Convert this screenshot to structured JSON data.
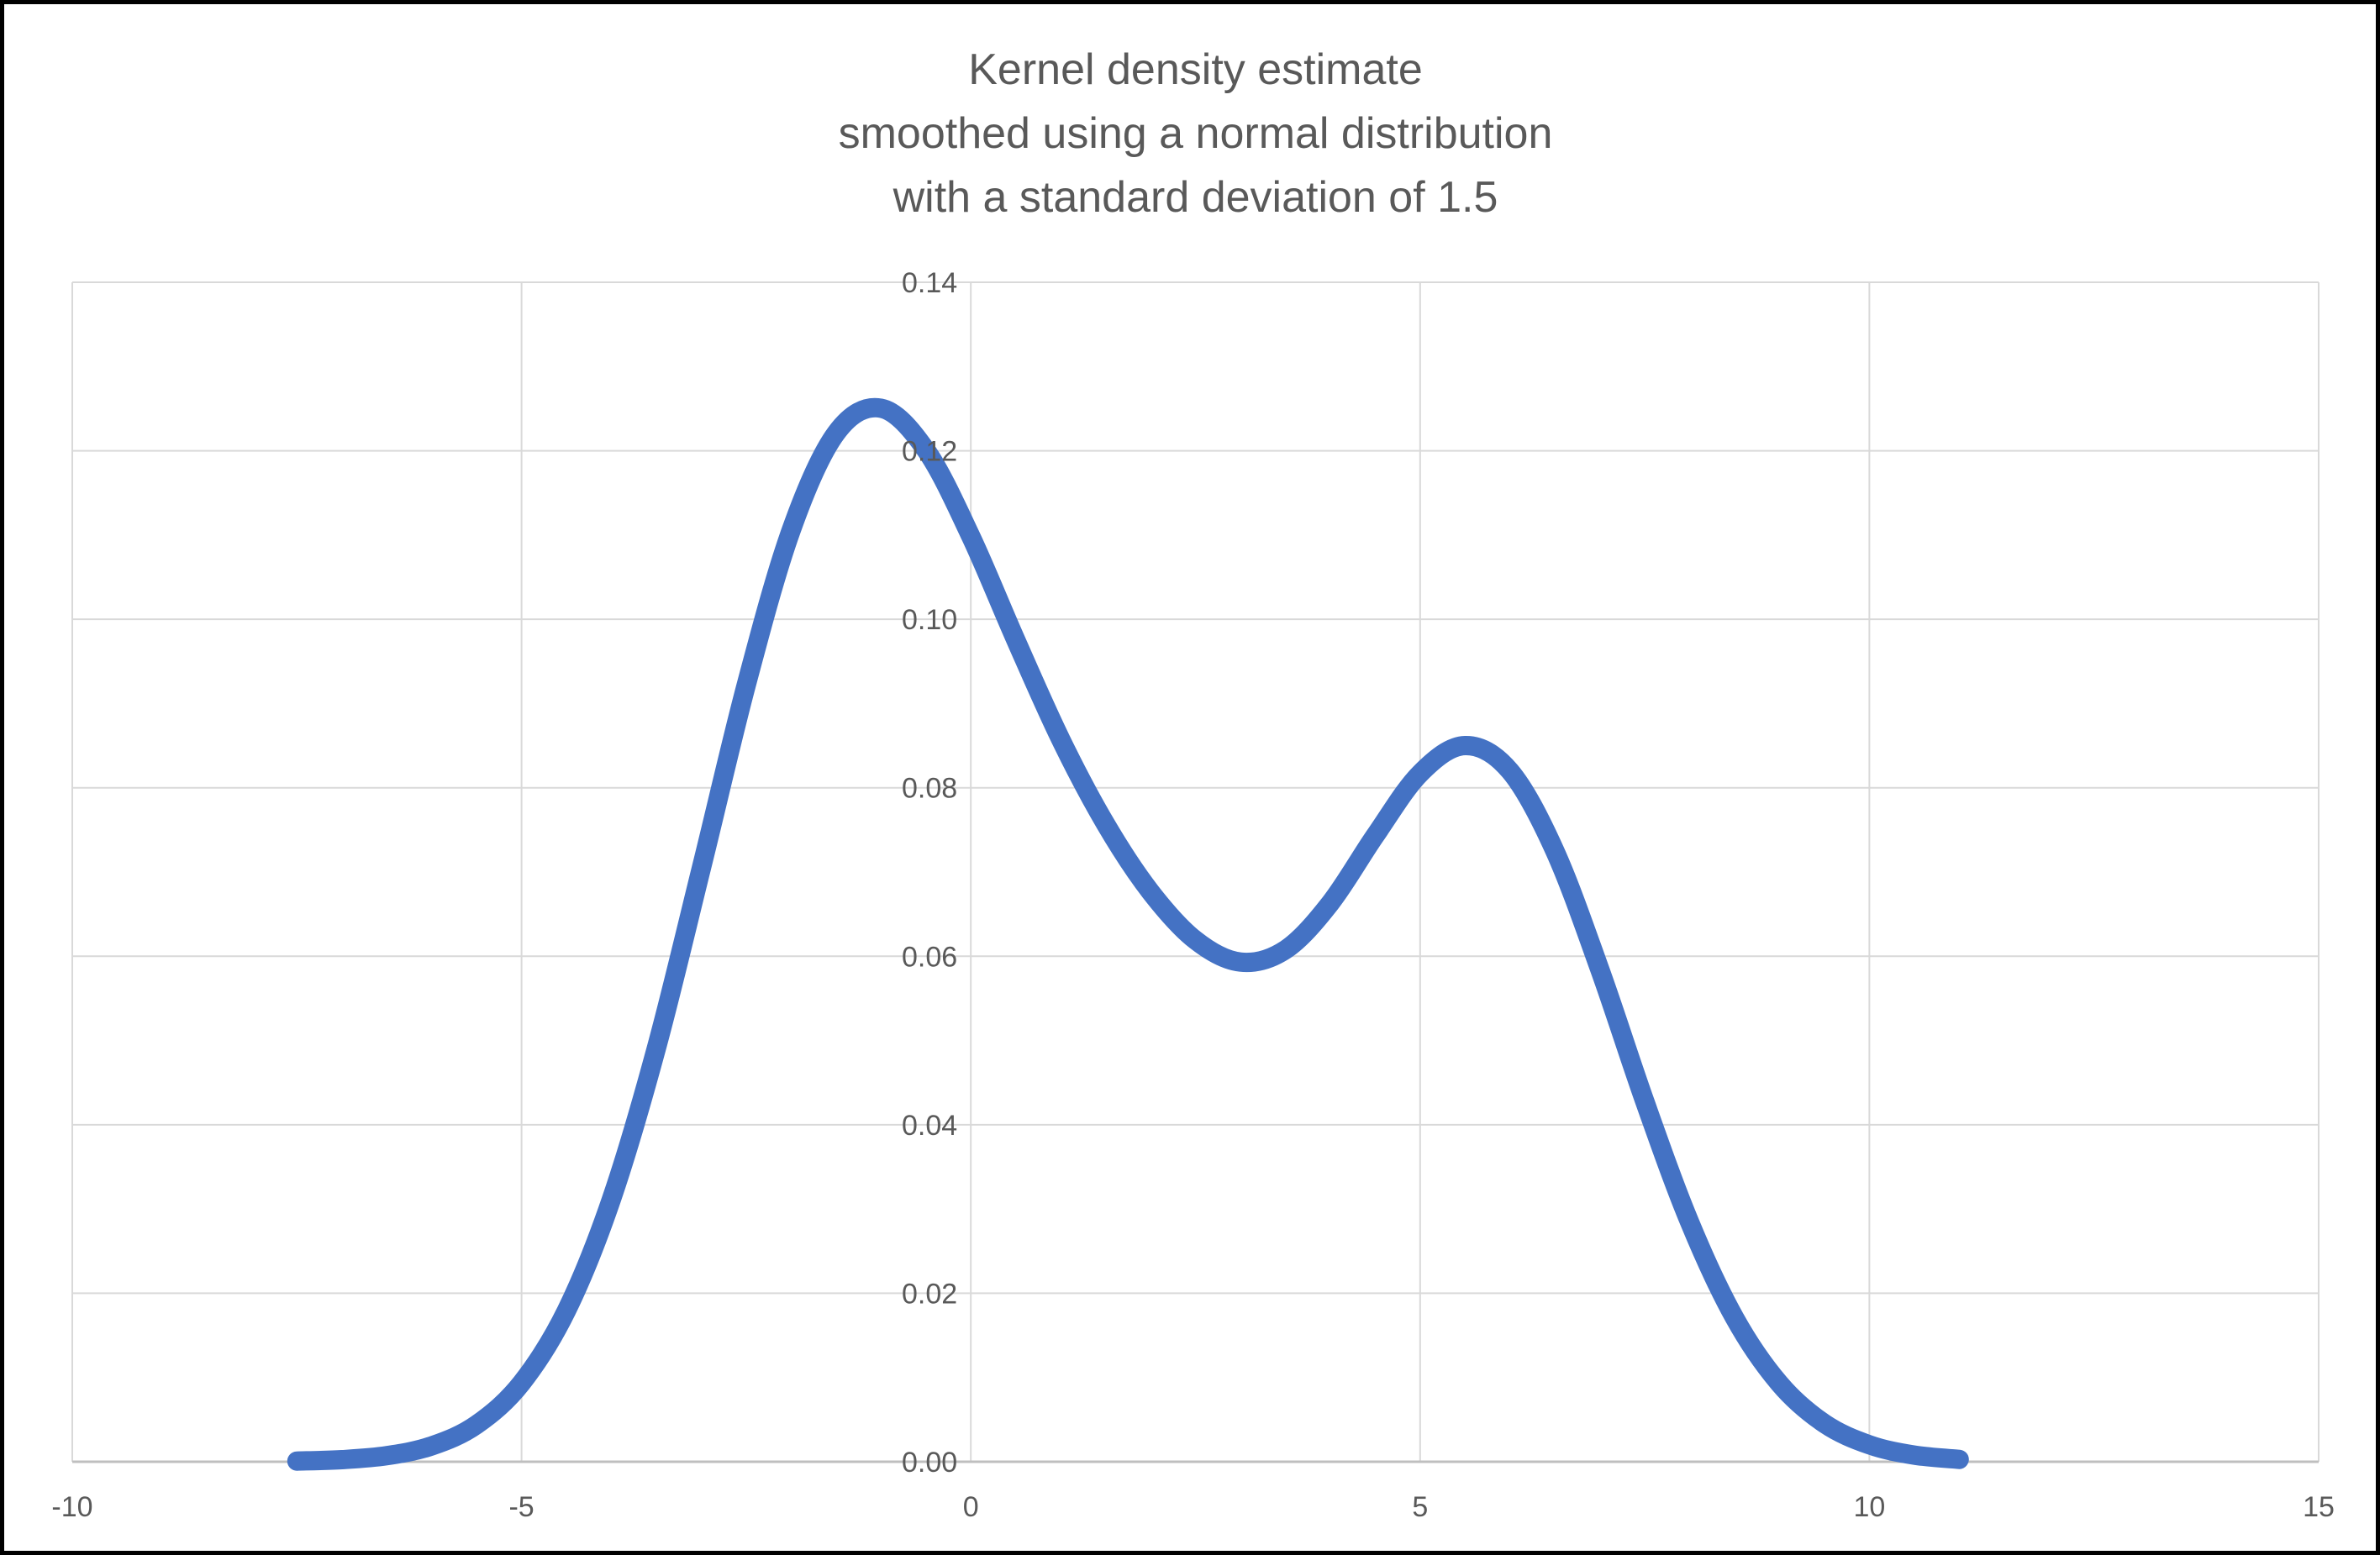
{
  "chart_data": {
    "type": "line",
    "title": "Kernel density estimate smoothed using a normal distribution with a standard deviation of 1.5",
    "title_lines": [
      "Kernel density estimate",
      "smoothed using a normal distribution",
      "with a standard deviation of 1.5"
    ],
    "xlabel": "",
    "ylabel": "",
    "xlim": [
      -10,
      15
    ],
    "ylim": [
      0,
      0.14
    ],
    "x_ticks": [
      -10,
      -5,
      0,
      5,
      10,
      15
    ],
    "y_ticks": [
      "0.00",
      "0.02",
      "0.04",
      "0.06",
      "0.08",
      "0.10",
      "0.12",
      "0.14"
    ],
    "grid": true,
    "legend_position": "none",
    "kernel": "normal",
    "kernel_std": 1.5,
    "colors": {
      "line": "#4472C4",
      "gridline": "#D9D9D9",
      "axis_line": "#BFBFBF",
      "text": "#595959",
      "background": "#FFFFFF",
      "frame_border": "#000000"
    },
    "series": [
      {
        "name": "Kernel density estimate",
        "color": "#4472C4",
        "x": [
          -7.5,
          -7.0,
          -6.5,
          -6.0,
          -5.5,
          -5.0,
          -4.5,
          -4.0,
          -3.5,
          -3.0,
          -2.5,
          -2.0,
          -1.5,
          -1.0,
          -0.5,
          0.0,
          0.5,
          1.0,
          1.5,
          2.0,
          2.5,
          3.0,
          3.5,
          4.0,
          4.5,
          5.0,
          5.5,
          6.0,
          6.5,
          7.0,
          7.5,
          8.0,
          8.5,
          9.0,
          9.5,
          10.0,
          10.5,
          11.0
        ],
        "y": [
          8e-05,
          0.00025,
          0.00072,
          0.00188,
          0.00441,
          0.00935,
          0.01794,
          0.03115,
          0.04907,
          0.0704,
          0.09217,
          0.11055,
          0.12208,
          0.12505,
          0.1201,
          0.10984,
          0.09754,
          0.08575,
          0.07569,
          0.06765,
          0.06191,
          0.05931,
          0.06077,
          0.0663,
          0.07432,
          0.0817,
          0.08501,
          0.082,
          0.07249,
          0.05844,
          0.04279,
          0.02842,
          0.01708,
          0.00927,
          0.00454,
          0.00201,
          0.00079,
          0.00028
        ]
      }
    ],
    "annotations": {
      "peak_1": {
        "x": -1.0,
        "y": 0.125
      },
      "valley": {
        "x": 3.0,
        "y": 0.059
      },
      "peak_2": {
        "x": 5.5,
        "y": 0.085
      }
    }
  }
}
